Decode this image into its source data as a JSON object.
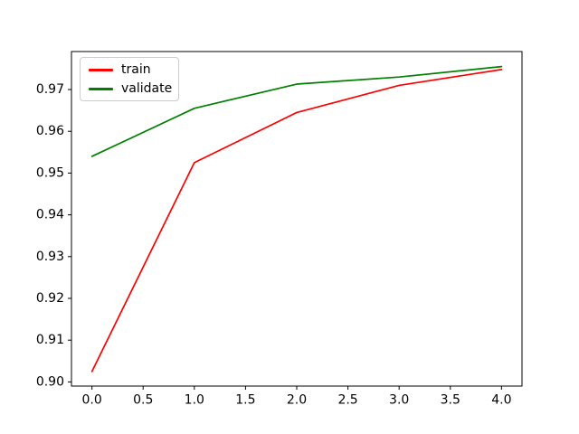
{
  "chart_data": {
    "type": "line",
    "title": "",
    "xlabel": "",
    "ylabel": "",
    "x": [
      0,
      1,
      2,
      3,
      4
    ],
    "series": [
      {
        "name": "train",
        "color": "#ff0000",
        "values": [
          0.9025,
          0.9525,
          0.9645,
          0.971,
          0.9748
        ]
      },
      {
        "name": "validate",
        "color": "#008000",
        "values": [
          0.954,
          0.9655,
          0.9713,
          0.973,
          0.9755
        ]
      }
    ],
    "xlim": [
      -0.2,
      4.2
    ],
    "ylim": [
      0.899,
      0.9791
    ],
    "xticks": [
      0.0,
      0.5,
      1.0,
      1.5,
      2.0,
      2.5,
      3.0,
      3.5,
      4.0
    ],
    "xtick_labels": [
      "0.0",
      "0.5",
      "1.0",
      "1.5",
      "2.0",
      "2.5",
      "3.0",
      "3.5",
      "4.0"
    ],
    "yticks": [
      0.9,
      0.91,
      0.92,
      0.93,
      0.94,
      0.95,
      0.96,
      0.97
    ],
    "ytick_labels": [
      "0.90",
      "0.91",
      "0.92",
      "0.93",
      "0.94",
      "0.95",
      "0.96",
      "0.97"
    ],
    "grid": false,
    "legend": {
      "position": "upper-left",
      "entries": [
        "train",
        "validate"
      ]
    }
  }
}
